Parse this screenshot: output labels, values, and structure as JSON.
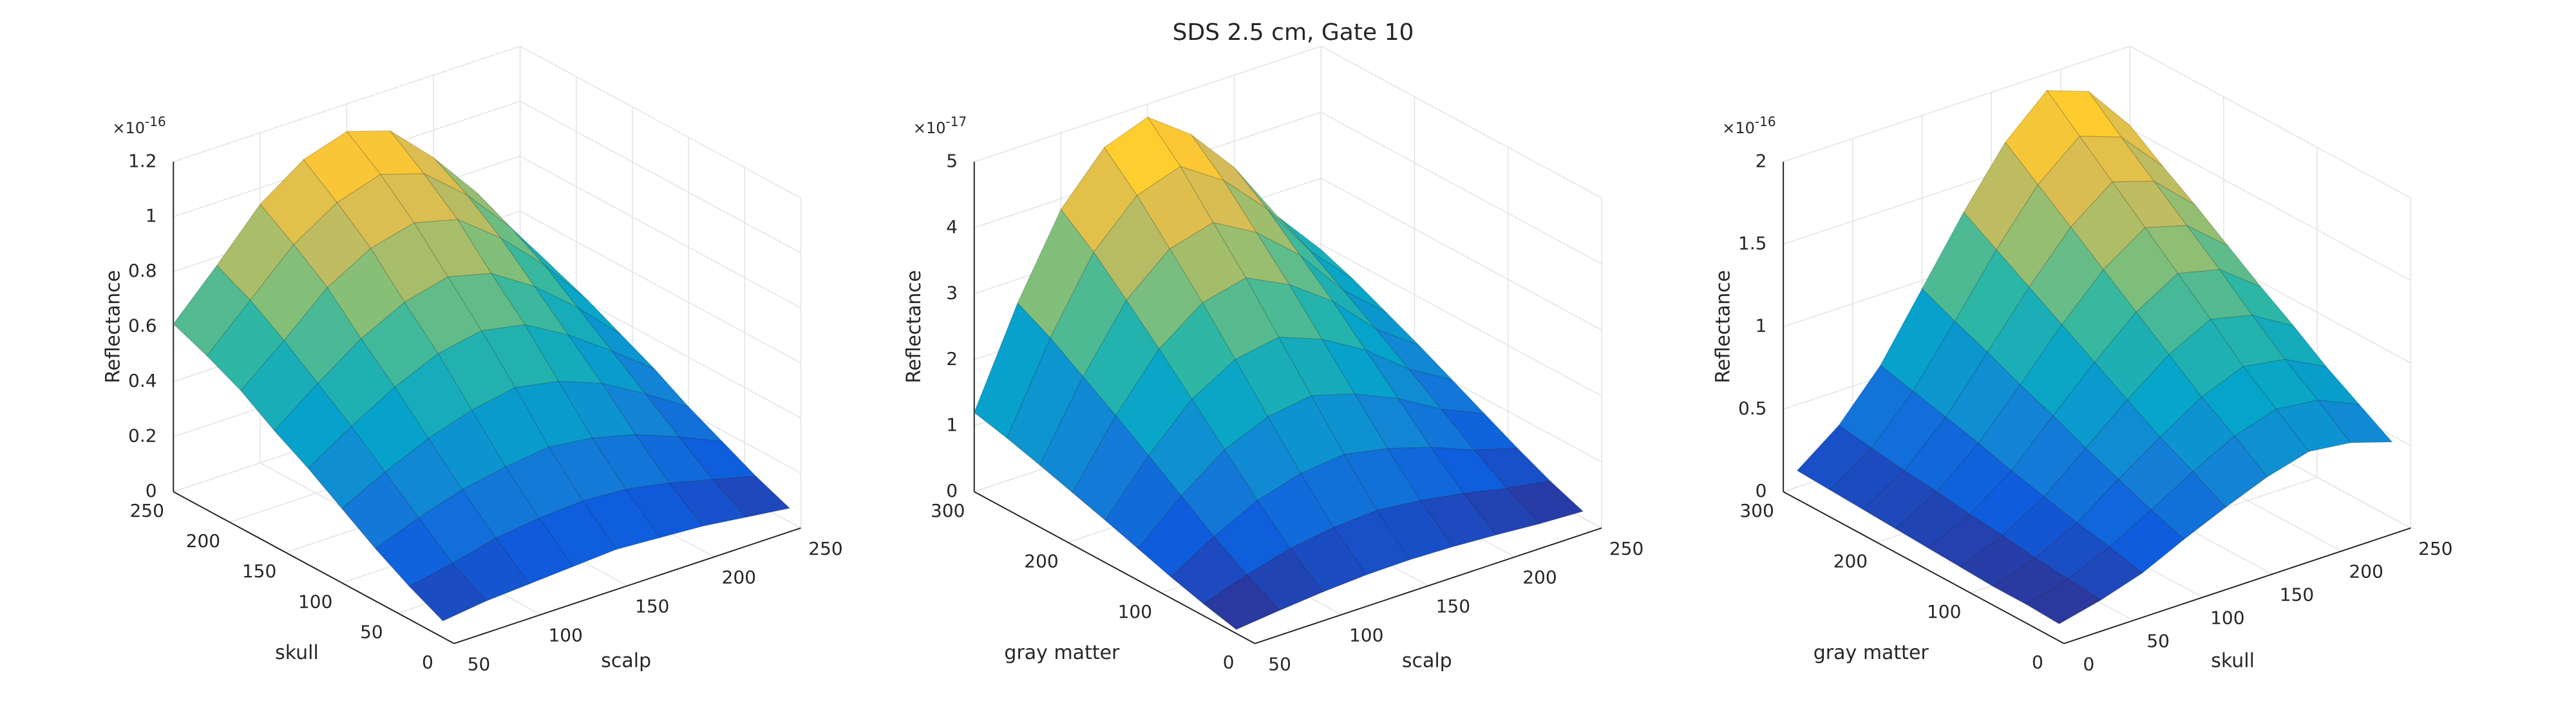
{
  "title": "SDS 2.5 cm, Gate 10",
  "chart_data": [
    {
      "type": "surface",
      "x_label": "scalp",
      "y_label": "skull",
      "z_label": "Reflectance",
      "z_exponent": {
        "base": "×10",
        "power": "-16"
      },
      "x": [
        50,
        75,
        100,
        125,
        150,
        175,
        200,
        225,
        250
      ],
      "y": [
        10,
        40,
        70,
        100,
        130,
        160,
        190,
        220,
        250
      ],
      "z": [
        [
          0.06,
          0.08,
          0.09,
          0.1,
          0.11,
          0.1,
          0.09,
          0.07,
          0.05
        ],
        [
          0.12,
          0.15,
          0.19,
          0.21,
          0.22,
          0.21,
          0.18,
          0.14,
          0.1
        ],
        [
          0.19,
          0.25,
          0.3,
          0.33,
          0.35,
          0.33,
          0.29,
          0.23,
          0.16
        ],
        [
          0.27,
          0.35,
          0.42,
          0.47,
          0.5,
          0.47,
          0.41,
          0.32,
          0.22
        ],
        [
          0.35,
          0.45,
          0.54,
          0.61,
          0.64,
          0.61,
          0.52,
          0.41,
          0.29
        ],
        [
          0.42,
          0.54,
          0.65,
          0.73,
          0.77,
          0.73,
          0.63,
          0.5,
          0.35
        ],
        [
          0.5,
          0.63,
          0.77,
          0.86,
          0.9,
          0.86,
          0.74,
          0.59,
          0.41
        ],
        [
          0.56,
          0.71,
          0.86,
          0.96,
          1.01,
          0.96,
          0.83,
          0.66,
          0.46
        ],
        [
          0.61,
          0.77,
          0.94,
          1.05,
          1.1,
          1.05,
          0.9,
          0.72,
          0.5
        ]
      ],
      "xlim": [
        50,
        250
      ],
      "ylim": [
        0,
        250
      ],
      "zlim": [
        0,
        1.2
      ],
      "xticks": [
        50,
        100,
        150,
        200,
        250
      ],
      "yticks": [
        0,
        50,
        100,
        150,
        200,
        250
      ],
      "zticks": [
        0,
        0.2,
        0.4,
        0.6,
        0.8,
        1,
        1.2
      ],
      "grid": true,
      "colormap": [
        "#352a87",
        "#0f5cdd",
        "#1481d6",
        "#06a4ca",
        "#2eb7a4",
        "#87bf77",
        "#d1bb59",
        "#fec832",
        "#f9fb0e"
      ]
    },
    {
      "type": "surface",
      "x_label": "scalp",
      "y_label": "gray matter",
      "z_label": "Reflectance",
      "z_exponent": {
        "base": "×10",
        "power": "-17"
      },
      "x": [
        50,
        75,
        100,
        125,
        150,
        175,
        200,
        225,
        250
      ],
      "y": [
        20,
        55,
        90,
        125,
        160,
        195,
        230,
        265,
        300
      ],
      "z": [
        [
          0.06,
          0.13,
          0.19,
          0.23,
          0.24,
          0.22,
          0.18,
          0.13,
          0.1
        ],
        [
          0.18,
          0.4,
          0.58,
          0.68,
          0.72,
          0.65,
          0.54,
          0.4,
          0.29
        ],
        [
          0.32,
          0.71,
          1.04,
          1.23,
          1.3,
          1.17,
          0.97,
          0.71,
          0.52
        ],
        [
          0.48,
          1.06,
          1.54,
          1.82,
          1.92,
          1.73,
          1.44,
          1.06,
          0.77
        ],
        [
          0.64,
          1.4,
          2.04,
          2.42,
          2.54,
          2.29,
          1.91,
          1.4,
          1.02
        ],
        [
          0.79,
          1.74,
          2.53,
          3.01,
          3.17,
          2.85,
          2.38,
          1.74,
          1.27
        ],
        [
          0.94,
          2.06,
          3.0,
          3.56,
          3.74,
          3.37,
          2.81,
          2.06,
          1.5
        ],
        [
          1.08,
          2.38,
          3.46,
          4.1,
          4.32,
          3.89,
          3.24,
          2.38,
          1.73
        ],
        [
          1.2,
          2.64,
          3.84,
          4.56,
          4.8,
          4.32,
          3.6,
          2.64,
          1.92
        ]
      ],
      "xlim": [
        50,
        250
      ],
      "ylim": [
        0,
        300
      ],
      "zlim": [
        0,
        5
      ],
      "xticks": [
        50,
        100,
        150,
        200,
        250
      ],
      "yticks": [
        0,
        100,
        200,
        300
      ],
      "zticks": [
        0,
        1,
        2,
        3,
        4,
        5
      ],
      "grid": true,
      "colormap": [
        "#352a87",
        "#0f5cdd",
        "#1481d6",
        "#06a4ca",
        "#2eb7a4",
        "#87bf77",
        "#d1bb59",
        "#fec832",
        "#f9fb0e"
      ]
    },
    {
      "type": "surface",
      "x_label": "skull",
      "y_label": "gray matter",
      "z_label": "Reflectance",
      "z_exponent": {
        "base": "×10",
        "power": "-16"
      },
      "x": [
        10,
        40,
        70,
        100,
        130,
        160,
        190,
        220,
        250
      ],
      "y": [
        20,
        55,
        90,
        125,
        160,
        195,
        230,
        265,
        300
      ],
      "z": [
        [
          0.03,
          0.09,
          0.17,
          0.29,
          0.4,
          0.5,
          0.57,
          0.54,
          0.46
        ],
        [
          0.04,
          0.11,
          0.22,
          0.36,
          0.51,
          0.64,
          0.72,
          0.69,
          0.58
        ],
        [
          0.04,
          0.13,
          0.26,
          0.44,
          0.61,
          0.77,
          0.87,
          0.83,
          0.7
        ],
        [
          0.05,
          0.16,
          0.31,
          0.52,
          0.73,
          0.92,
          1.05,
          0.99,
          0.84
        ],
        [
          0.06,
          0.18,
          0.36,
          0.61,
          0.85,
          1.07,
          1.22,
          1.16,
          0.97
        ],
        [
          0.07,
          0.21,
          0.42,
          0.69,
          0.97,
          1.22,
          1.39,
          1.32,
          1.11
        ],
        [
          0.08,
          0.23,
          0.47,
          0.78,
          1.09,
          1.37,
          1.56,
          1.48,
          1.25
        ],
        [
          0.09,
          0.26,
          0.52,
          0.86,
          1.21,
          1.52,
          1.73,
          1.64,
          1.38
        ],
        [
          0.1,
          0.29,
          0.57,
          0.95,
          1.33,
          1.67,
          1.9,
          1.81,
          1.52
        ]
      ],
      "xlim": [
        0,
        250
      ],
      "ylim": [
        0,
        300
      ],
      "zlim": [
        0,
        2
      ],
      "xticks": [
        0,
        50,
        100,
        150,
        200,
        250
      ],
      "yticks": [
        0,
        100,
        200,
        300
      ],
      "zticks": [
        0,
        0.5,
        1,
        1.5,
        2
      ],
      "grid": true,
      "colormap": [
        "#352a87",
        "#0f5cdd",
        "#1481d6",
        "#06a4ca",
        "#2eb7a4",
        "#87bf77",
        "#d1bb59",
        "#fec832",
        "#f9fb0e"
      ]
    }
  ]
}
